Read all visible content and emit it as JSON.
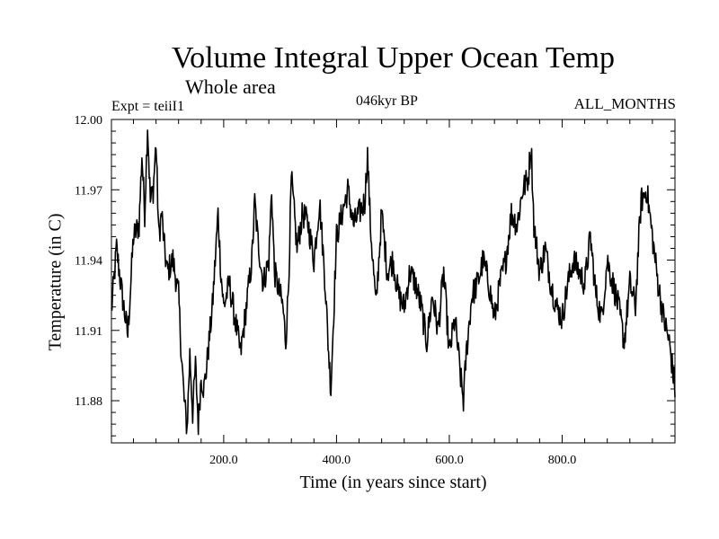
{
  "chart_data": {
    "type": "line",
    "title": "Volume Integral Upper Ocean Temp",
    "subtitle": "Whole area",
    "annotations": {
      "experiment": "Expt = teiiI1",
      "period": "046kyr BP",
      "months": "ALL_MONTHS"
    },
    "xlabel": "Time (in years since start)",
    "ylabel": "Temperature (in C)",
    "xlim": [
      1,
      1000
    ],
    "ylim": [
      11.862,
      12.0
    ],
    "x_ticks": [
      200,
      400,
      600,
      800
    ],
    "x_tick_labels": [
      "200.0",
      "400.0",
      "600.0",
      "800.0"
    ],
    "y_ticks": [
      11.88,
      11.91,
      11.94,
      11.97,
      12.0
    ],
    "y_tick_labels": [
      "11.88",
      "11.91",
      "11.94",
      "11.97",
      "12.00"
    ],
    "grid": false,
    "series": [
      {
        "x": [
          1,
          10,
          20,
          30,
          40,
          50,
          55,
          60,
          65,
          70,
          75,
          80,
          85,
          90,
          95,
          100,
          110,
          120,
          125,
          130,
          135,
          140,
          145,
          150,
          155,
          160,
          165,
          170,
          180,
          190,
          195,
          200,
          210,
          220,
          230,
          240,
          250,
          255,
          260,
          270,
          280,
          285,
          290,
          300,
          305,
          310,
          315,
          320,
          330,
          340,
          350,
          360,
          370,
          380,
          385,
          390,
          400,
          410,
          420,
          430,
          440,
          450,
          455,
          460,
          470,
          480,
          490,
          500,
          510,
          520,
          530,
          540,
          550,
          560,
          570,
          580,
          590,
          600,
          610,
          620,
          625,
          630,
          640,
          650,
          660,
          670,
          680,
          690,
          700,
          710,
          720,
          730,
          740,
          745,
          750,
          760,
          770,
          780,
          790,
          800,
          810,
          820,
          830,
          840,
          850,
          860,
          870,
          880,
          890,
          900,
          910,
          920,
          930,
          935,
          940,
          950,
          960,
          970,
          980,
          990,
          1000
        ],
        "y": [
          11.918,
          11.945,
          11.925,
          11.908,
          11.95,
          11.955,
          11.985,
          11.96,
          11.998,
          11.965,
          11.97,
          11.99,
          11.95,
          11.96,
          11.945,
          11.935,
          11.94,
          11.925,
          11.9,
          11.88,
          11.868,
          11.9,
          11.875,
          11.895,
          11.87,
          11.89,
          11.885,
          11.895,
          11.92,
          11.96,
          11.935,
          11.92,
          11.93,
          11.915,
          11.9,
          11.92,
          11.94,
          11.965,
          11.95,
          11.93,
          11.94,
          11.97,
          11.935,
          11.925,
          11.92,
          11.905,
          11.93,
          11.975,
          11.945,
          11.96,
          11.955,
          11.94,
          11.965,
          11.93,
          11.905,
          11.885,
          11.95,
          11.96,
          11.97,
          11.955,
          11.96,
          11.965,
          11.985,
          11.955,
          11.92,
          11.96,
          11.935,
          11.94,
          11.925,
          11.92,
          11.935,
          11.93,
          11.92,
          11.905,
          11.925,
          11.91,
          11.935,
          11.9,
          11.915,
          11.89,
          11.88,
          11.9,
          11.925,
          11.93,
          11.94,
          11.93,
          11.915,
          11.93,
          11.94,
          11.96,
          11.955,
          11.97,
          11.975,
          11.99,
          11.955,
          11.935,
          11.945,
          11.93,
          11.92,
          11.915,
          11.93,
          11.94,
          11.935,
          11.93,
          11.95,
          11.925,
          11.915,
          11.94,
          11.93,
          11.92,
          11.905,
          11.93,
          11.92,
          11.945,
          11.965,
          11.97,
          11.95,
          11.93,
          11.915,
          11.905,
          11.885
        ]
      }
    ]
  }
}
